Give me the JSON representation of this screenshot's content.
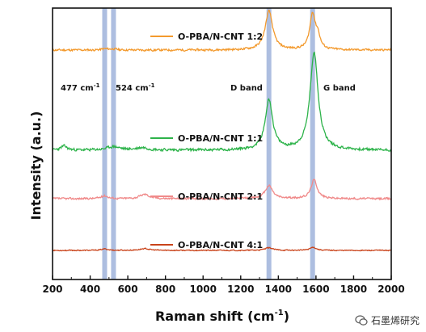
{
  "chart_data": {
    "type": "line",
    "xlabel": "Raman shift (cm",
    "xlabel_unit_sup": "-1",
    "xlabel_close": ")",
    "ylabel": "Intensity (a.u.)",
    "xlim": [
      200,
      2000
    ],
    "x_ticks": [
      200,
      400,
      600,
      800,
      1000,
      1200,
      1400,
      1600,
      1800,
      2000
    ],
    "grid": false,
    "series": [
      {
        "name": "O-PBA/N-CNT 1:2",
        "color": "#F39A2E",
        "baseline": 0.0,
        "peaks": [
          {
            "x": 477,
            "height": 0.03,
            "width": 20
          },
          {
            "x": 524,
            "height": 0.03,
            "width": 20
          },
          {
            "x": 1350,
            "height": 1.0,
            "width": 24
          },
          {
            "x": 1582,
            "height": 0.92,
            "width": 18
          },
          {
            "x": 1610,
            "height": 0.3,
            "width": 14
          }
        ],
        "noise": 0.025,
        "seed": 11
      },
      {
        "name": "O-PBA/N-CNT 1:1",
        "color": "#2DB34A",
        "baseline": 0.0,
        "peaks": [
          {
            "x": 260,
            "height": 0.08,
            "width": 20
          },
          {
            "x": 524,
            "height": 0.07,
            "width": 40
          },
          {
            "x": 680,
            "height": 0.05,
            "width": 40
          },
          {
            "x": 1350,
            "height": 1.0,
            "width": 24
          },
          {
            "x": 1590,
            "height": 1.95,
            "width": 26
          }
        ],
        "noise": 0.025,
        "seed": 23
      },
      {
        "name": "O-PBA/N-CNT 2:1",
        "color": "#F08A8A",
        "baseline": 0.0,
        "peaks": [
          {
            "x": 477,
            "height": 0.1,
            "width": 22
          },
          {
            "x": 690,
            "height": 0.15,
            "width": 30
          },
          {
            "x": 1350,
            "height": 0.45,
            "width": 24
          },
          {
            "x": 1590,
            "height": 0.65,
            "width": 20
          }
        ],
        "noise": 0.03,
        "seed": 37
      },
      {
        "name": "O-PBA/N-CNT 4:1",
        "color": "#C9431A",
        "baseline": 0.0,
        "peaks": [
          {
            "x": 477,
            "height": 0.08,
            "width": 22
          },
          {
            "x": 690,
            "height": 0.1,
            "width": 30
          },
          {
            "x": 1350,
            "height": 0.15,
            "width": 24
          },
          {
            "x": 1585,
            "height": 0.18,
            "width": 20
          }
        ],
        "noise": 0.025,
        "seed": 53
      }
    ],
    "highlight_lines": [
      477,
      524,
      1350,
      1582
    ],
    "highlight_color": "#9FB3DA",
    "annotations": [
      {
        "text": "477 cm",
        "sup": "-1"
      },
      {
        "text": "524 cm",
        "sup": "-1"
      },
      {
        "text": "D band",
        "sup": ""
      },
      {
        "text": "G band",
        "sup": ""
      }
    ]
  },
  "watermark": {
    "text": "石墨烯研究",
    "icon": "wechat-icon"
  }
}
